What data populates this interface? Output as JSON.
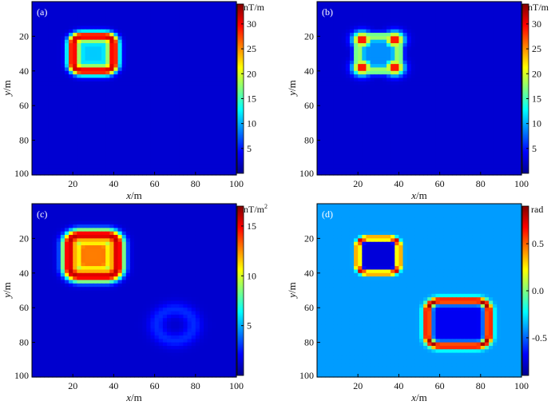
{
  "figure": {
    "x_axis_label_italic": "x",
    "x_axis_label_unit": "/m",
    "y_axis_label_italic": "y",
    "y_axis_label_unit": "/m"
  },
  "colormap": [
    "#00008f",
    "#0000ff",
    "#0080ff",
    "#00ffff",
    "#80ff80",
    "#ffff00",
    "#ff8000",
    "#ff0000",
    "#800000"
  ],
  "chart_data": [
    {
      "type": "heatmap",
      "panel_label": "(a)",
      "colorbar_unit": "nT/m",
      "colorbar_ticks": [
        "5",
        "10",
        "15",
        "20",
        "25",
        "30"
      ],
      "colorbar_tick_values": [
        5,
        10,
        15,
        20,
        25,
        30
      ],
      "clim": [
        0,
        34
      ],
      "xlim": [
        0,
        100
      ],
      "ylim": [
        100,
        0
      ],
      "x_ticks": [
        "20",
        "40",
        "60",
        "80",
        "100"
      ],
      "x_tick_values": [
        20,
        40,
        60,
        80,
        100
      ],
      "y_ticks": [
        "20",
        "40",
        "60",
        "80",
        "100"
      ],
      "y_tick_values": [
        20,
        40,
        60,
        80,
        100
      ],
      "background_value": 2.5,
      "features": [
        {
          "shape": "rounded-rect-ring",
          "center": [
            30,
            30
          ],
          "half_width": 10,
          "half_height": 10,
          "thickness": 4,
          "peak": 32,
          "interior": 11
        }
      ]
    },
    {
      "type": "heatmap",
      "panel_label": "(b)",
      "colorbar_unit": "nT/m",
      "colorbar_ticks": [
        "5",
        "10",
        "15",
        "20",
        "25",
        "30"
      ],
      "colorbar_tick_values": [
        5,
        10,
        15,
        20,
        25,
        30
      ],
      "clim": [
        0,
        34
      ],
      "xlim": [
        0,
        100
      ],
      "ylim": [
        100,
        0
      ],
      "x_ticks": [
        "20",
        "40",
        "60",
        "80",
        "100"
      ],
      "x_tick_values": [
        20,
        40,
        60,
        80,
        100
      ],
      "y_ticks": [
        "20",
        "40",
        "60",
        "80",
        "100"
      ],
      "y_tick_values": [
        20,
        40,
        60,
        80,
        100
      ],
      "background_value": 2.5,
      "features": [
        {
          "shape": "rounded-rect-ring",
          "center": [
            30,
            30
          ],
          "half_width": 10,
          "half_height": 10,
          "thickness": 3,
          "peak": 20,
          "interior": 9
        },
        {
          "shape": "spot",
          "center": [
            22,
            22
          ],
          "radius": 3,
          "peak": 32
        },
        {
          "shape": "spot",
          "center": [
            38,
            22
          ],
          "radius": 3,
          "peak": 32
        },
        {
          "shape": "spot",
          "center": [
            22,
            38
          ],
          "radius": 3,
          "peak": 32
        },
        {
          "shape": "spot",
          "center": [
            38,
            38
          ],
          "radius": 3,
          "peak": 32
        }
      ]
    },
    {
      "type": "heatmap",
      "panel_label": "(c)",
      "colorbar_unit": "nT/m",
      "colorbar_unit_sup": "2",
      "colorbar_ticks": [
        "5",
        "10",
        "15"
      ],
      "colorbar_tick_values": [
        5,
        10,
        15
      ],
      "clim": [
        0,
        17
      ],
      "xlim": [
        0,
        100
      ],
      "ylim": [
        100,
        0
      ],
      "x_ticks": [
        "20",
        "40",
        "60",
        "80",
        "100"
      ],
      "x_tick_values": [
        20,
        40,
        60,
        80,
        100
      ],
      "y_ticks": [
        "20",
        "40",
        "60",
        "80",
        "100"
      ],
      "y_tick_values": [
        20,
        40,
        60,
        80,
        100
      ],
      "background_value": 1.2,
      "features": [
        {
          "shape": "rounded-rect-ring",
          "center": [
            30,
            30
          ],
          "half_width": 12,
          "half_height": 12,
          "thickness": 5,
          "peak": 16,
          "interior": 8
        },
        {
          "shape": "rounded-rect-ring",
          "center": [
            30,
            30
          ],
          "half_width": 7,
          "half_height": 7,
          "thickness": 1.5,
          "peak": 3,
          "interior": 6
        },
        {
          "shape": "ring",
          "center": [
            70,
            70
          ],
          "radius": 9,
          "thickness": 6,
          "peak": 2.8
        }
      ]
    },
    {
      "type": "heatmap",
      "panel_label": "(d)",
      "colorbar_unit": "rad",
      "colorbar_ticks": [
        "0.5",
        "0.0",
        "-0.5"
      ],
      "colorbar_tick_values": [
        0.5,
        0.0,
        -0.5
      ],
      "clim": [
        -0.9,
        0.9
      ],
      "xlim": [
        0,
        100
      ],
      "ylim": [
        100,
        0
      ],
      "x_ticks": [
        "20",
        "40",
        "60",
        "80",
        "100"
      ],
      "x_tick_values": [
        20,
        40,
        60,
        80,
        100
      ],
      "y_ticks": [
        "20",
        "40",
        "60",
        "80",
        "100"
      ],
      "y_tick_values": [
        20,
        40,
        60,
        80,
        100
      ],
      "background_value": -0.4,
      "features": [
        {
          "shape": "rounded-rect-ring",
          "center": [
            30,
            30
          ],
          "half_width": 10,
          "half_height": 10,
          "thickness": 2,
          "peak": 0.85,
          "interior": -0.75
        },
        {
          "shape": "rounded-rect-ring",
          "center": [
            69,
            69
          ],
          "half_width": 15,
          "half_height": 13,
          "thickness": 3,
          "peak": 0.85,
          "interior": -0.7
        }
      ]
    }
  ]
}
